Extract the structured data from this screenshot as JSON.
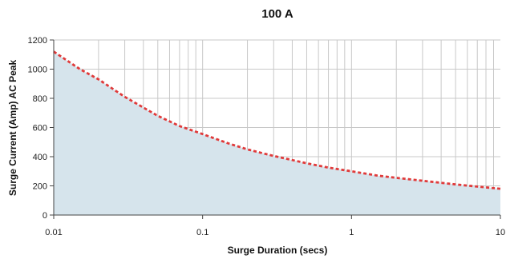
{
  "chart_data": {
    "type": "area",
    "title": "100 A",
    "xlabel": "Surge Duration (secs)",
    "ylabel": "Surge Current (Amp) AC Peak",
    "x_scale": "log",
    "xlim": [
      0.01,
      10
    ],
    "ylim": [
      0,
      1200
    ],
    "x_ticks": [
      0.01,
      0.1,
      1,
      10
    ],
    "x_tick_labels": [
      "0.01",
      "0.1",
      "1",
      "10"
    ],
    "y_ticks": [
      0,
      200,
      400,
      600,
      800,
      1000,
      1200
    ],
    "y_tick_labels": [
      "0",
      "200",
      "400",
      "600",
      "800",
      "1000",
      "1200"
    ],
    "grid": true,
    "legend": "none",
    "series": [
      {
        "x": [
          0.01,
          0.015,
          0.02,
          0.03,
          0.05,
          0.07,
          0.1,
          0.15,
          0.2,
          0.3,
          0.5,
          0.7,
          1,
          1.5,
          2,
          3,
          5,
          7,
          10
        ],
        "y": [
          1120,
          1000,
          930,
          810,
          680,
          610,
          555,
          490,
          450,
          405,
          355,
          325,
          300,
          270,
          255,
          235,
          210,
          195,
          180
        ]
      }
    ],
    "colors": {
      "fill": "#d6e4ec",
      "line": "#e03a3a",
      "grid": "#c8c8c8",
      "axis": "#444444"
    }
  }
}
